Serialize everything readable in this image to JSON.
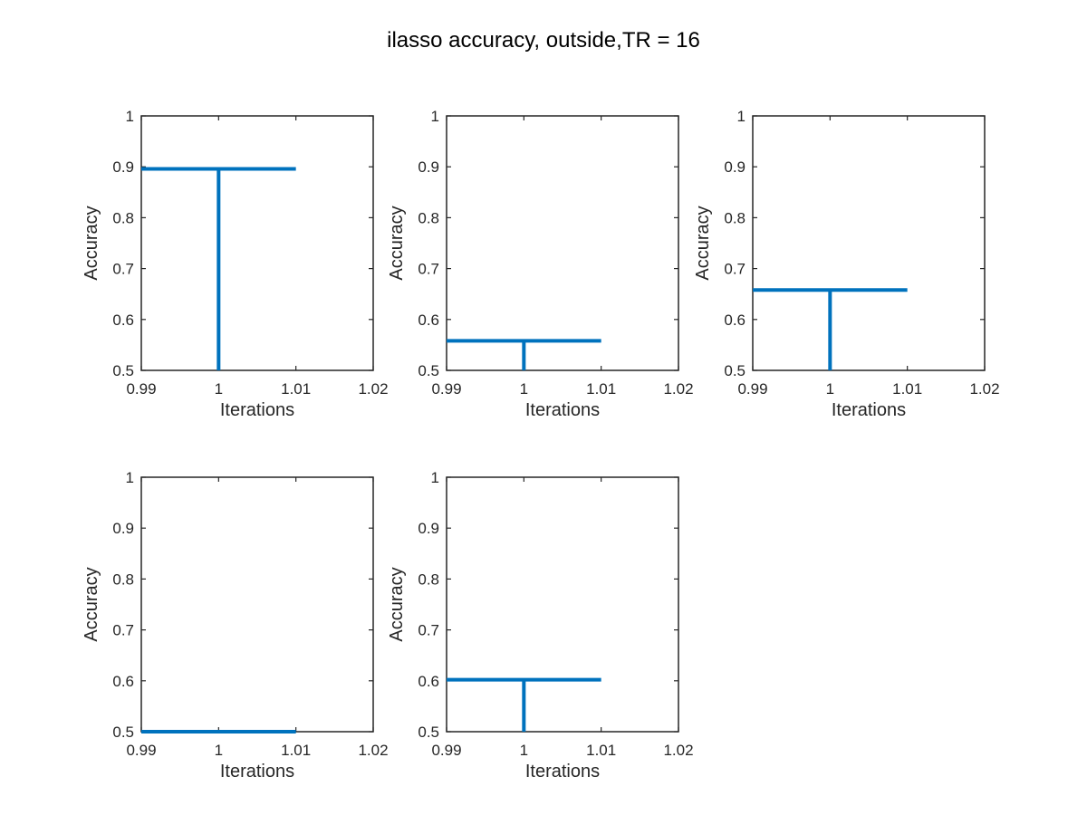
{
  "figure": {
    "title": "ilasso accuracy, outside,TR = 16"
  },
  "colors": {
    "series": "#0072bd",
    "axes": "#262626",
    "background": "#ffffff"
  },
  "chart_data": [
    {
      "type": "stem",
      "xlabel": "Iterations",
      "ylabel": "Accuracy",
      "xlim": [
        0.99,
        1.02
      ],
      "ylim": [
        0.5,
        1
      ],
      "xticks": [
        "0.99",
        "1",
        "1.01",
        "1.02"
      ],
      "yticks": [
        "0.5",
        "0.6",
        "0.7",
        "0.8",
        "0.9",
        "1"
      ],
      "grid": false,
      "series": [
        {
          "x": [
            1
          ],
          "y": [
            0.896
          ],
          "baseline": 0.5
        }
      ],
      "horizontal_line": {
        "xrange": [
          0.99,
          1.01
        ],
        "y": 0.896
      }
    },
    {
      "type": "stem",
      "xlabel": "Iterations",
      "ylabel": "Accuracy",
      "xlim": [
        0.99,
        1.02
      ],
      "ylim": [
        0.5,
        1
      ],
      "xticks": [
        "0.99",
        "1",
        "1.01",
        "1.02"
      ],
      "yticks": [
        "0.5",
        "0.6",
        "0.7",
        "0.8",
        "0.9",
        "1"
      ],
      "grid": false,
      "series": [
        {
          "x": [
            1
          ],
          "y": [
            0.558
          ],
          "baseline": 0.5
        }
      ],
      "horizontal_line": {
        "xrange": [
          0.99,
          1.01
        ],
        "y": 0.558
      }
    },
    {
      "type": "stem",
      "xlabel": "Iterations",
      "ylabel": "Accuracy",
      "xlim": [
        0.99,
        1.02
      ],
      "ylim": [
        0.5,
        1
      ],
      "xticks": [
        "0.99",
        "1",
        "1.01",
        "1.02"
      ],
      "yticks": [
        "0.5",
        "0.6",
        "0.7",
        "0.8",
        "0.9",
        "1"
      ],
      "grid": false,
      "series": [
        {
          "x": [
            1
          ],
          "y": [
            0.658
          ],
          "baseline": 0.5
        }
      ],
      "horizontal_line": {
        "xrange": [
          0.99,
          1.01
        ],
        "y": 0.658
      }
    },
    {
      "type": "stem",
      "xlabel": "Iterations",
      "ylabel": "Accuracy",
      "xlim": [
        0.99,
        1.02
      ],
      "ylim": [
        0.5,
        1
      ],
      "xticks": [
        "0.99",
        "1",
        "1.01",
        "1.02"
      ],
      "yticks": [
        "0.5",
        "0.6",
        "0.7",
        "0.8",
        "0.9",
        "1"
      ],
      "grid": false,
      "series": [
        {
          "x": [
            1
          ],
          "y": [
            0.5
          ],
          "baseline": 0.5
        }
      ],
      "horizontal_line": {
        "xrange": [
          0.99,
          1.01
        ],
        "y": 0.5
      }
    },
    {
      "type": "stem",
      "xlabel": "Iterations",
      "ylabel": "Accuracy",
      "xlim": [
        0.99,
        1.02
      ],
      "ylim": [
        0.5,
        1
      ],
      "xticks": [
        "0.99",
        "1",
        "1.01",
        "1.02"
      ],
      "yticks": [
        "0.5",
        "0.6",
        "0.7",
        "0.8",
        "0.9",
        "1"
      ],
      "grid": false,
      "series": [
        {
          "x": [
            1
          ],
          "y": [
            0.602
          ],
          "baseline": 0.5
        }
      ],
      "horizontal_line": {
        "xrange": [
          0.99,
          1.01
        ],
        "y": 0.602
      }
    }
  ]
}
